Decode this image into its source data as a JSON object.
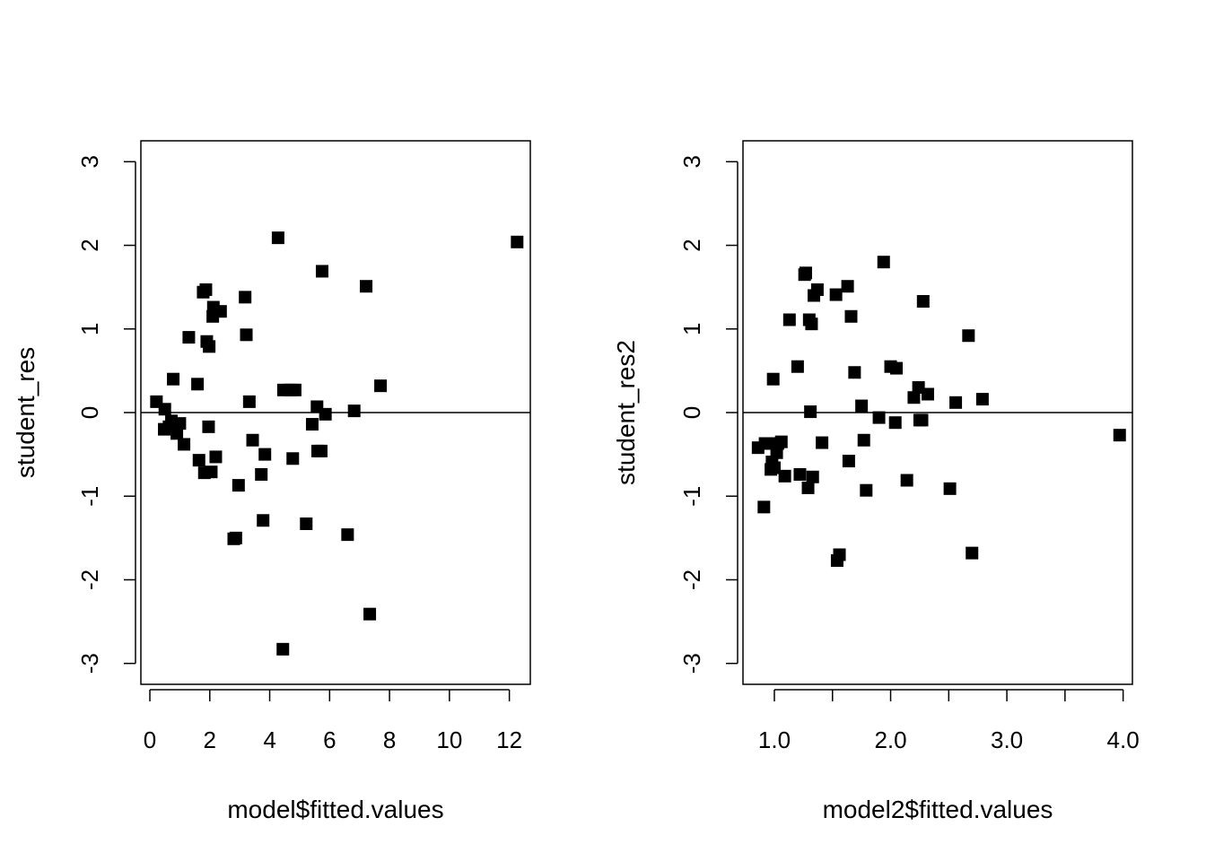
{
  "chart_data": [
    {
      "type": "scatter",
      "xlabel": "model$fitted.values",
      "ylabel": "student_res",
      "xlim": [
        -0.3,
        12.7
      ],
      "ylim": [
        -3.25,
        3.25
      ],
      "x_ticks": [
        0,
        2,
        4,
        6,
        8,
        10,
        12
      ],
      "x_tick_labels": [
        "0",
        "2",
        "4",
        "6",
        "8",
        "10",
        "12"
      ],
      "y_ticks": [
        -3,
        -2,
        -1,
        0,
        1,
        2,
        3
      ],
      "y_tick_labels": [
        "-3",
        "-2",
        "-1",
        "0",
        "1",
        "2",
        "3"
      ],
      "reference_line_y": 0,
      "marker": "filled-square",
      "color": "#000000",
      "x": [
        0.22,
        0.48,
        0.5,
        0.64,
        0.72,
        0.78,
        0.83,
        0.9,
        1.0,
        1.14,
        1.3,
        1.59,
        1.64,
        1.78,
        1.82,
        1.87,
        1.9,
        1.96,
        1.98,
        2.05,
        2.1,
        2.12,
        2.2,
        2.36,
        2.8,
        2.87,
        2.96,
        3.18,
        3.22,
        3.32,
        3.43,
        3.72,
        3.78,
        3.84,
        4.28,
        4.44,
        4.46,
        4.7,
        4.77,
        4.85,
        5.22,
        5.42,
        5.58,
        5.6,
        5.72,
        5.75,
        5.86,
        6.6,
        6.82,
        7.22,
        7.34,
        7.7,
        12.26
      ],
      "y": [
        0.13,
        -0.2,
        0.04,
        -0.17,
        -0.1,
        0.4,
        -0.18,
        -0.25,
        -0.13,
        -0.38,
        0.9,
        0.34,
        -0.57,
        1.44,
        -0.72,
        1.47,
        0.85,
        -0.17,
        0.79,
        -0.71,
        1.15,
        1.26,
        -0.53,
        1.21,
        -1.51,
        -1.5,
        -0.87,
        1.38,
        0.93,
        0.13,
        -0.33,
        -0.74,
        -1.29,
        -0.5,
        2.09,
        -2.83,
        0.27,
        0.27,
        -0.55,
        0.27,
        -1.33,
        -0.14,
        0.07,
        -0.46,
        -0.46,
        1.69,
        -0.02,
        -1.46,
        0.02,
        1.51,
        -2.41,
        0.32,
        2.04
      ]
    },
    {
      "type": "scatter",
      "xlabel": "model2$fitted.values",
      "ylabel": "student_res2",
      "xlim": [
        0.73,
        4.08
      ],
      "ylim": [
        -3.25,
        3.25
      ],
      "x_ticks": [
        1.0,
        1.5,
        2.0,
        2.5,
        3.0,
        3.5,
        4.0
      ],
      "x_tick_labels": [
        "1.0",
        "",
        "2.0",
        "",
        "3.0",
        "",
        "4.0"
      ],
      "y_ticks": [
        -3,
        -2,
        -1,
        0,
        1,
        2,
        3
      ],
      "y_tick_labels": [
        "-3",
        "-2",
        "-1",
        "0",
        "1",
        "2",
        "3"
      ],
      "reference_line_y": 0,
      "marker": "filled-square",
      "color": "#000000",
      "x": [
        0.86,
        0.91,
        0.92,
        0.95,
        0.97,
        0.98,
        0.99,
        1.0,
        1.02,
        1.03,
        1.06,
        1.09,
        1.13,
        1.2,
        1.22,
        1.26,
        1.27,
        1.29,
        1.3,
        1.31,
        1.32,
        1.33,
        1.34,
        1.37,
        1.41,
        1.53,
        1.54,
        1.56,
        1.63,
        1.64,
        1.66,
        1.69,
        1.75,
        1.77,
        1.79,
        1.9,
        1.94,
        2.0,
        2.04,
        2.05,
        2.14,
        2.2,
        2.24,
        2.25,
        2.27,
        2.28,
        2.32,
        2.51,
        2.56,
        2.67,
        2.7,
        2.79,
        3.97
      ],
      "y": [
        -0.42,
        -1.13,
        -0.37,
        -0.37,
        -0.68,
        -0.59,
        0.4,
        -0.66,
        -0.48,
        -0.37,
        -0.35,
        -0.76,
        1.11,
        0.55,
        -0.74,
        1.65,
        1.67,
        -0.9,
        1.11,
        0.01,
        1.06,
        -0.77,
        1.4,
        1.47,
        -0.36,
        1.41,
        -1.77,
        -1.7,
        1.51,
        -0.58,
        1.15,
        0.48,
        0.08,
        -0.33,
        -0.93,
        -0.06,
        1.8,
        0.55,
        -0.12,
        0.53,
        -0.81,
        0.18,
        0.3,
        -0.09,
        -0.09,
        1.33,
        0.22,
        -0.91,
        0.12,
        0.92,
        -1.68,
        0.16,
        -0.27
      ]
    }
  ]
}
